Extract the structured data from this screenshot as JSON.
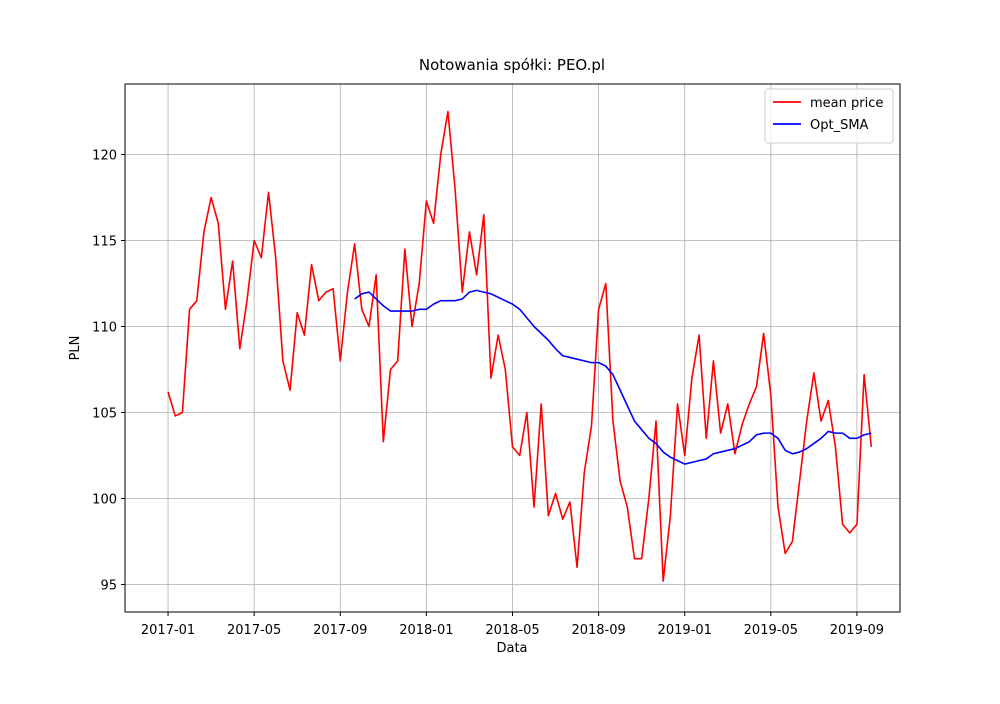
{
  "chart_data": {
    "type": "line",
    "title": "Notowania spółki: PEO.pl",
    "x_label": "Data",
    "y_label": "PLN",
    "x": [
      "2017-01",
      "2017-01",
      "2017-01",
      "2017-02",
      "2017-02",
      "2017-02",
      "2017-03",
      "2017-03",
      "2017-03",
      "2017-04",
      "2017-04",
      "2017-04",
      "2017-05",
      "2017-05",
      "2017-05",
      "2017-06",
      "2017-06",
      "2017-06",
      "2017-07",
      "2017-07",
      "2017-07",
      "2017-08",
      "2017-08",
      "2017-08",
      "2017-09",
      "2017-09",
      "2017-09",
      "2017-10",
      "2017-10",
      "2017-10",
      "2017-11",
      "2017-11",
      "2017-11",
      "2017-12",
      "2017-12",
      "2017-12",
      "2018-01",
      "2018-01",
      "2018-01",
      "2018-02",
      "2018-02",
      "2018-02",
      "2018-03",
      "2018-03",
      "2018-03",
      "2018-04",
      "2018-04",
      "2018-04",
      "2018-05",
      "2018-05",
      "2018-05",
      "2018-06",
      "2018-06",
      "2018-06",
      "2018-07",
      "2018-07",
      "2018-07",
      "2018-08",
      "2018-08",
      "2018-08",
      "2018-09",
      "2018-09",
      "2018-09",
      "2018-10",
      "2018-10",
      "2018-10",
      "2018-11",
      "2018-11",
      "2018-11",
      "2018-12",
      "2018-12",
      "2018-12",
      "2019-01",
      "2019-01",
      "2019-01",
      "2019-02",
      "2019-02",
      "2019-02",
      "2019-03",
      "2019-03",
      "2019-03",
      "2019-04",
      "2019-04",
      "2019-04",
      "2019-05",
      "2019-05",
      "2019-05",
      "2019-06",
      "2019-06",
      "2019-06",
      "2019-07",
      "2019-07",
      "2019-07",
      "2019-08",
      "2019-08",
      "2019-08",
      "2019-09",
      "2019-09",
      "2019-09"
    ],
    "series": [
      {
        "name": "mean price",
        "color": "#ff0000",
        "values": [
          106.2,
          104.8,
          105.0,
          111.0,
          111.5,
          115.5,
          117.5,
          116.0,
          111.0,
          113.8,
          108.7,
          111.5,
          115.0,
          114.0,
          117.8,
          114.0,
          108.0,
          106.3,
          110.8,
          109.5,
          113.6,
          111.5,
          112.0,
          112.2,
          108.0,
          112.0,
          114.8,
          111.0,
          110.0,
          113.0,
          103.3,
          107.5,
          108.0,
          114.5,
          110.0,
          112.5,
          117.3,
          116.0,
          120.0,
          122.5,
          118.0,
          112.0,
          115.5,
          113.0,
          116.5,
          107.0,
          109.5,
          107.5,
          103.0,
          102.5,
          105.0,
          99.5,
          105.5,
          99.0,
          100.3,
          98.8,
          99.8,
          96.0,
          101.5,
          104.2,
          111.0,
          112.5,
          104.5,
          101.0,
          99.5,
          96.5,
          96.5,
          100.0,
          104.5,
          95.2,
          99.0,
          105.5,
          102.5,
          107.0,
          109.5,
          103.5,
          108.0,
          103.8,
          105.5,
          102.6,
          104.3,
          105.5,
          106.5,
          109.6,
          106.0,
          99.5,
          96.8,
          97.5,
          101.0,
          104.5,
          107.3,
          104.5,
          105.7,
          103.0,
          98.5,
          98.0,
          98.5,
          107.2,
          103.0
        ]
      },
      {
        "name": "Opt_SMA",
        "color": "#0000ff",
        "values": [
          null,
          null,
          null,
          null,
          null,
          null,
          null,
          null,
          null,
          null,
          null,
          null,
          null,
          null,
          null,
          null,
          null,
          null,
          null,
          null,
          null,
          null,
          null,
          null,
          null,
          null,
          111.6,
          111.9,
          112.0,
          111.6,
          111.2,
          110.9,
          110.9,
          110.9,
          110.9,
          111.0,
          111.0,
          111.3,
          111.5,
          111.5,
          111.5,
          111.6,
          112.0,
          112.1,
          112.0,
          111.9,
          111.7,
          111.5,
          111.3,
          111.0,
          110.5,
          110.0,
          109.6,
          109.2,
          108.7,
          108.3,
          108.2,
          108.1,
          108.0,
          107.9,
          107.9,
          107.7,
          107.2,
          106.3,
          105.4,
          104.5,
          104.0,
          103.5,
          103.2,
          102.7,
          102.4,
          102.2,
          102.0,
          102.1,
          102.2,
          102.3,
          102.6,
          102.7,
          102.8,
          102.9,
          103.1,
          103.3,
          103.7,
          103.8,
          103.8,
          103.5,
          102.8,
          102.6,
          102.7,
          102.9,
          103.2,
          103.5,
          103.9,
          103.8,
          103.8,
          103.5,
          103.5,
          103.7,
          103.8
        ]
      }
    ],
    "xlim": [
      "2016-11",
      "2019-11"
    ],
    "xticks": [
      "2017-01",
      "2017-05",
      "2017-09",
      "2018-01",
      "2018-05",
      "2018-09",
      "2019-01",
      "2019-05",
      "2019-09"
    ],
    "ylim": [
      93.4,
      124.1
    ],
    "yticks": [
      95,
      100,
      105,
      110,
      115,
      120
    ],
    "grid": true,
    "legend": "upper right"
  }
}
